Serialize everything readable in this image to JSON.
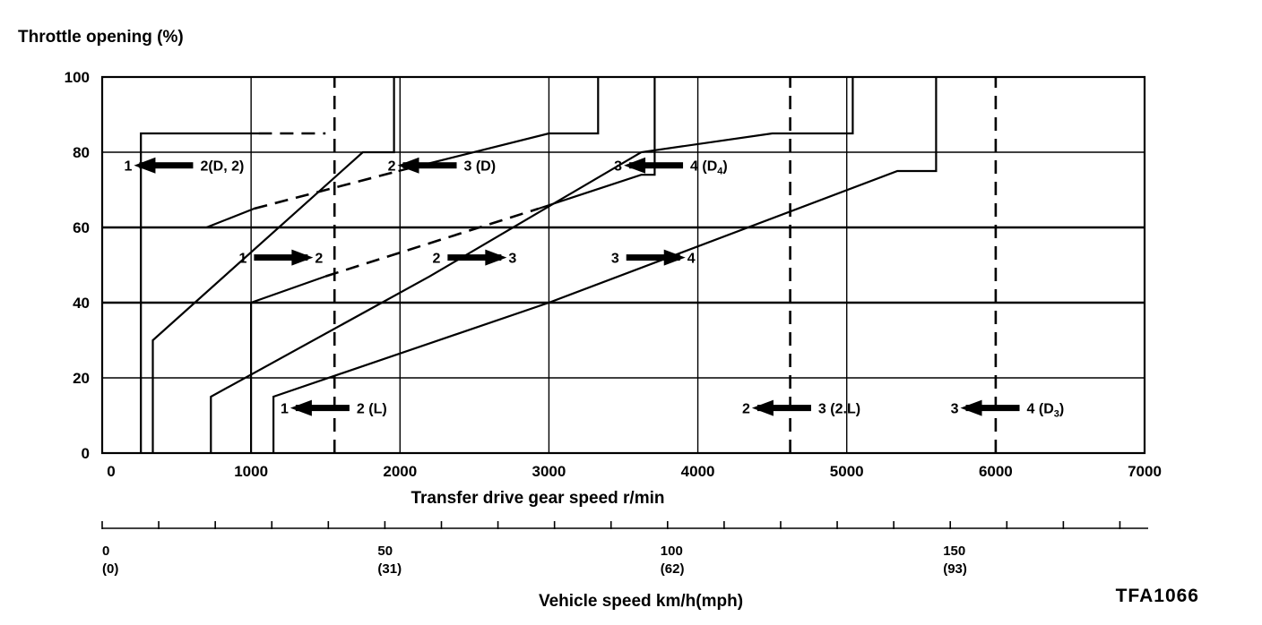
{
  "chart_data": {
    "type": "line",
    "title": "",
    "ylabel": "Throttle opening (%)",
    "xlabel": "Transfer drive gear speed r/min",
    "secondary_xlabel": "Vehicle speed km/h(mph)",
    "figure_code": "TFA1066",
    "xlim": [
      0,
      7000
    ],
    "ylim": [
      0,
      100
    ],
    "x_ticks": [
      "0",
      "1000",
      "2000",
      "3000",
      "4000",
      "5000",
      "6000",
      "7000"
    ],
    "y_ticks": [
      "0",
      "20",
      "40",
      "60",
      "80",
      "100"
    ],
    "grid": true,
    "secondary_axis": [
      {
        "value": 0,
        "kmh": "0",
        "mph": "(0)"
      },
      {
        "value": 50,
        "kmh": "50",
        "mph": "(31)"
      },
      {
        "value": 100,
        "kmh": "100",
        "mph": "(62)"
      },
      {
        "value": 150,
        "kmh": "150",
        "mph": "(93)"
      }
    ],
    "secondary_axis_max_kmh": 185,
    "series": [
      {
        "name": "1 → 2(D, 2)",
        "style": "solid",
        "segments": [
          {
            "style": "solid",
            "points": [
              [
                260,
                0
              ],
              [
                260,
                85
              ],
              [
                1050,
                85
              ]
            ]
          },
          {
            "style": "dashed",
            "points": [
              [
                1050,
                85
              ],
              [
                1500,
                85
              ]
            ]
          }
        ]
      },
      {
        "name": "1 ← 2",
        "style": "solid",
        "points": [
          [
            340,
            0
          ],
          [
            340,
            30
          ],
          [
            1750,
            80
          ],
          [
            1960,
            80
          ],
          [
            1960,
            100
          ]
        ]
      },
      {
        "name": "2 → 3 (D)",
        "style": "solid",
        "segments": [
          {
            "style": "solid",
            "points": [
              [
                700,
                60
              ],
              [
                1020,
                65
              ]
            ]
          },
          {
            "style": "dashed",
            "points": [
              [
                1020,
                65
              ],
              [
                1990,
                75
              ]
            ]
          },
          {
            "style": "solid",
            "points": [
              [
                1990,
                75
              ],
              [
                3000,
                85
              ],
              [
                3330,
                85
              ],
              [
                3330,
                100
              ]
            ]
          }
        ]
      },
      {
        "name": "2 ← 3",
        "style": "solid",
        "segments": [
          {
            "style": "solid",
            "points": [
              [
                1000,
                0
              ],
              [
                1000,
                40
              ],
              [
                1500,
                47
              ]
            ]
          },
          {
            "style": "dashed",
            "points": [
              [
                1500,
                47
              ],
              [
                2930,
                65
              ]
            ]
          },
          {
            "style": "solid",
            "points": [
              [
                2930,
                65
              ],
              [
                3620,
                74
              ],
              [
                3710,
                74
              ],
              [
                3710,
                100
              ]
            ]
          }
        ]
      },
      {
        "name": "3 → 4 (D4)",
        "style": "solid",
        "points": [
          [
            730,
            0
          ],
          [
            730,
            15
          ],
          [
            2200,
            47
          ],
          [
            3620,
            80
          ],
          [
            4500,
            85
          ],
          [
            5040,
            85
          ],
          [
            5040,
            100
          ]
        ]
      },
      {
        "name": "3 ← 4",
        "style": "solid",
        "points": [
          [
            1150,
            0
          ],
          [
            1150,
            15
          ],
          [
            3000,
            40
          ],
          [
            5340,
            75
          ],
          [
            5600,
            75
          ],
          [
            5600,
            100
          ]
        ]
      },
      {
        "name": "1 → 2 (L)",
        "style": "dashed",
        "points": [
          [
            1560,
            0
          ],
          [
            1560,
            100
          ]
        ]
      },
      {
        "name": "2 → 3 (2.L)",
        "style": "dashed",
        "points": [
          [
            4620,
            0
          ],
          [
            4620,
            100
          ]
        ]
      },
      {
        "name": "3 → 4 (D3)",
        "style": "dashed",
        "points": [
          [
            6000,
            0
          ],
          [
            6000,
            100
          ]
        ]
      }
    ],
    "annotations": [
      {
        "from": "1",
        "to": "2(D, 2)",
        "dir": "up",
        "x": 430,
        "y": 76.5
      },
      {
        "from": "2",
        "to": "3 (D)",
        "dir": "up",
        "x": 2200,
        "y": 76.5
      },
      {
        "from": "3",
        "to": "4 (D",
        "sub": "4",
        "tail": ")",
        "dir": "up",
        "x": 3720,
        "y": 76.5
      },
      {
        "from": "1",
        "to": "2",
        "dir": "down",
        "x": 1200,
        "y": 52
      },
      {
        "from": "2",
        "to": "3",
        "dir": "down",
        "x": 2500,
        "y": 52
      },
      {
        "from": "3",
        "to": "4",
        "dir": "down",
        "x": 3700,
        "y": 52
      },
      {
        "from": "1",
        "to": "2 (L)",
        "dir": "up",
        "x": 1480,
        "y": 12
      },
      {
        "from": "2",
        "to": "3 (2.L)",
        "dir": "up",
        "x": 4580,
        "y": 12
      },
      {
        "from": "3",
        "to": "4 (D",
        "sub": "3",
        "tail": ")",
        "dir": "up",
        "x": 5980,
        "y": 12
      }
    ]
  }
}
